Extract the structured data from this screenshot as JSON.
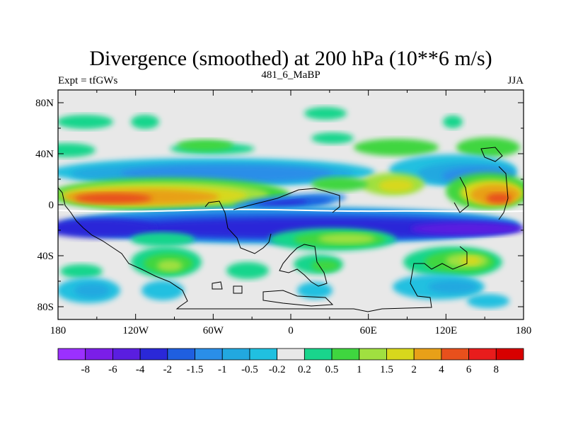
{
  "chart_data": {
    "type": "heatmap",
    "title": "Divergence (smoothed) at 200 hPa (10**6 m/s)",
    "subtitle_left": "Expt = tfGWs",
    "subtitle_center": "481_6_MaBP",
    "subtitle_right": "JJA",
    "x_ticks": [
      "180",
      "120W",
      "60W",
      "0",
      "60E",
      "120E",
      "180"
    ],
    "x_tick_values": [
      -180,
      -120,
      -60,
      0,
      60,
      120,
      180
    ],
    "y_ticks": [
      "80N",
      "40N",
      "0",
      "40S",
      "80S"
    ],
    "y_tick_values": [
      80,
      40,
      0,
      -40,
      -80
    ],
    "xlim": [
      -180,
      180
    ],
    "ylim": [
      -90,
      90
    ],
    "colorbar": {
      "levels": [
        "-8",
        "-6",
        "-4",
        "-2",
        "-1.5",
        "-1",
        "-0.5",
        "-0.2",
        "0.2",
        "0.5",
        "1",
        "1.5",
        "2",
        "4",
        "6",
        "8"
      ],
      "colors": [
        "#9b30ff",
        "#7b1ee8",
        "#5a1ee0",
        "#2a28d8",
        "#1f5fe0",
        "#2a8ee8",
        "#22a8e0",
        "#20c0e0",
        "#e8e8e8",
        "#19d58c",
        "#3fd63f",
        "#a0e040",
        "#d8d81c",
        "#e8a018",
        "#e8501c",
        "#e81c1c",
        "#d80000"
      ]
    }
  }
}
